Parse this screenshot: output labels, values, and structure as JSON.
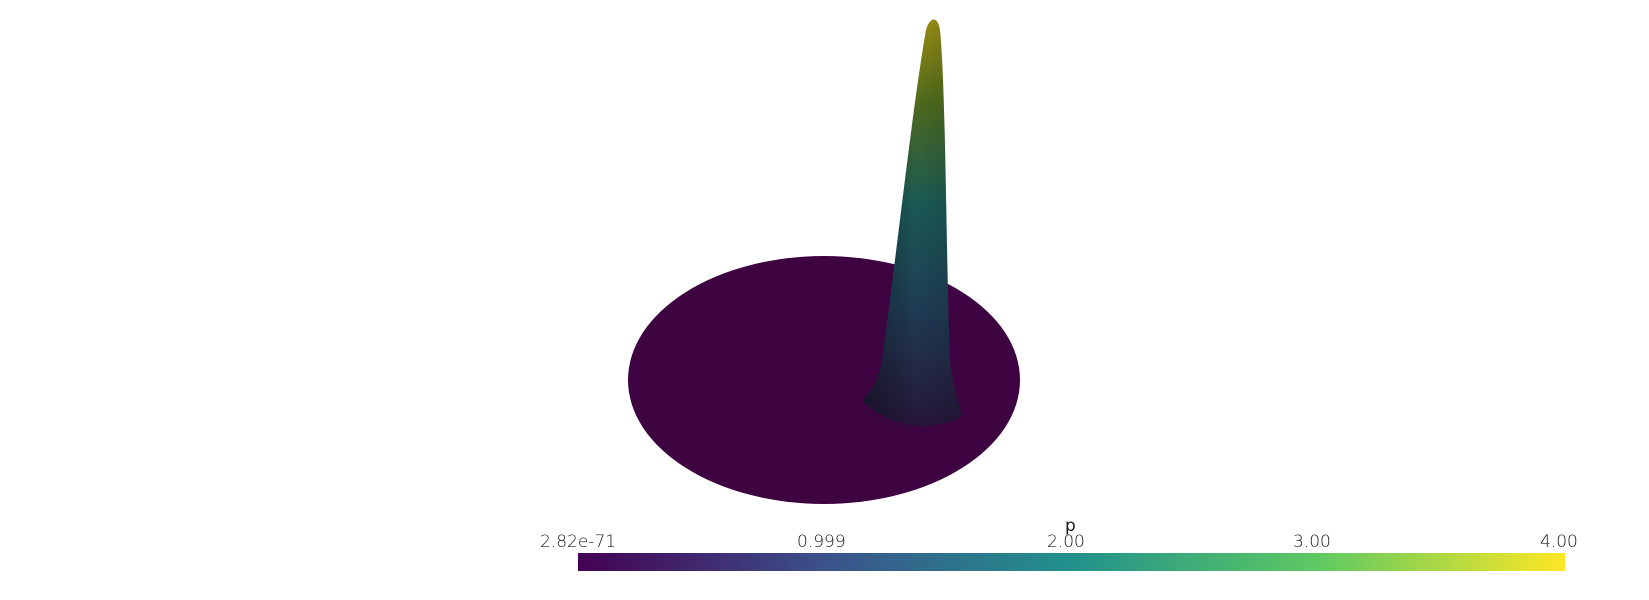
{
  "colorbar": {
    "title": "p",
    "ticks": [
      "2.82e-71",
      "0.999",
      "2.00",
      "3.00",
      "4.00"
    ],
    "colormap": "viridis",
    "colors": [
      "#440154",
      "#3b528b",
      "#21918c",
      "#5ec962",
      "#fde725"
    ]
  },
  "scene": {
    "disk_color": "#3e0442",
    "peak_color_top": "#8a8a1a",
    "peak_color_mid": "#1f5a5c",
    "peak_color_base": "#24183d"
  }
}
